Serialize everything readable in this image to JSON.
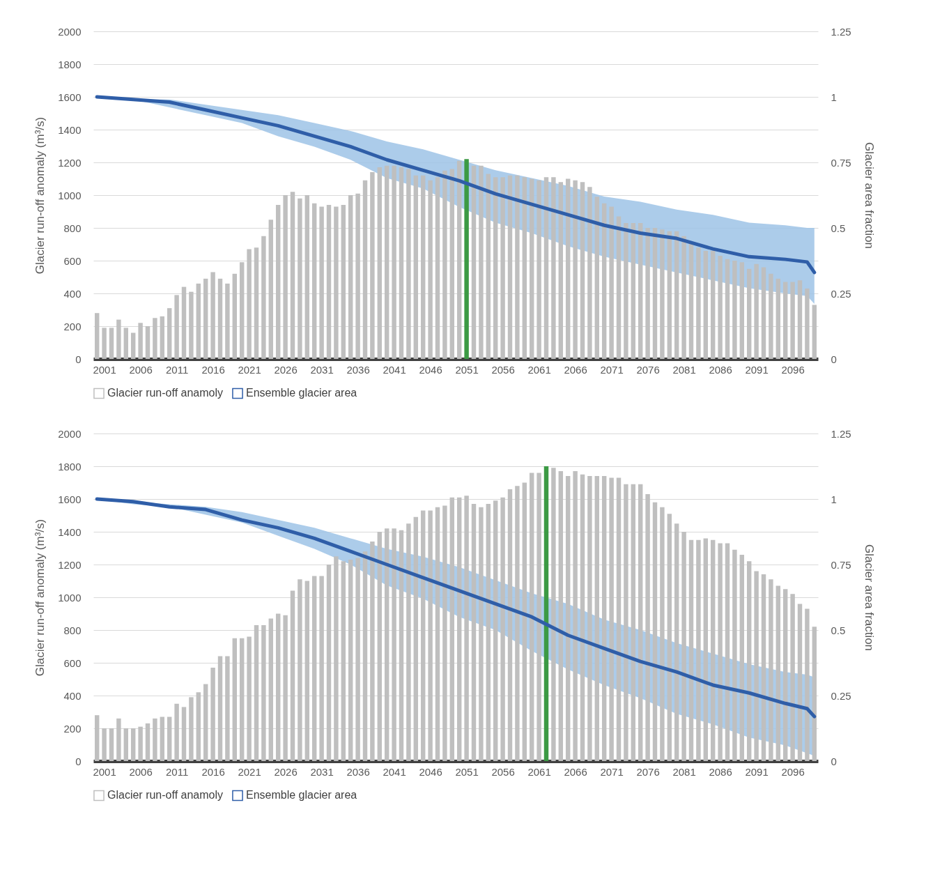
{
  "chart_data": [
    {
      "type": "bar",
      "ylabel": "Glacier run-off anomaly (m³/s)",
      "y2label": "Glacier area fraction",
      "x": [
        2000,
        2001,
        2002,
        2003,
        2004,
        2005,
        2006,
        2007,
        2008,
        2009,
        2010,
        2011,
        2012,
        2013,
        2014,
        2015,
        2016,
        2017,
        2018,
        2019,
        2020,
        2021,
        2022,
        2023,
        2024,
        2025,
        2026,
        2027,
        2028,
        2029,
        2030,
        2031,
        2032,
        2033,
        2034,
        2035,
        2036,
        2037,
        2038,
        2039,
        2040,
        2041,
        2042,
        2043,
        2044,
        2045,
        2046,
        2047,
        2048,
        2049,
        2050,
        2051,
        2052,
        2053,
        2054,
        2055,
        2056,
        2057,
        2058,
        2059,
        2060,
        2061,
        2062,
        2063,
        2064,
        2065,
        2066,
        2067,
        2068,
        2069,
        2070,
        2071,
        2072,
        2073,
        2074,
        2075,
        2076,
        2077,
        2078,
        2079,
        2080,
        2081,
        2082,
        2083,
        2084,
        2085,
        2086,
        2087,
        2088,
        2089,
        2090,
        2091,
        2092,
        2093,
        2094,
        2095,
        2096,
        2097,
        2098,
        2099
      ],
      "xlim": [
        1999.5,
        2099.5
      ],
      "xticks": [
        2001,
        2006,
        2011,
        2016,
        2021,
        2026,
        2031,
        2036,
        2041,
        2046,
        2051,
        2056,
        2061,
        2066,
        2071,
        2076,
        2081,
        2086,
        2091,
        2096
      ],
      "ylim": [
        0,
        2000
      ],
      "yticks": [
        0,
        200,
        400,
        600,
        800,
        1000,
        1200,
        1400,
        1600,
        1800,
        2000
      ],
      "y2lim": [
        0,
        1.25
      ],
      "y2ticks": [
        0,
        0.25,
        0.5,
        0.75,
        1,
        1.25
      ],
      "grid": "y",
      "legend": "bottom",
      "series": [
        {
          "name": "Glacier run-off anamoly",
          "color": "#bfbfbf",
          "values": [
            280,
            190,
            190,
            240,
            190,
            160,
            220,
            200,
            250,
            260,
            310,
            390,
            440,
            410,
            460,
            490,
            530,
            490,
            460,
            520,
            590,
            670,
            680,
            750,
            850,
            940,
            1000,
            1020,
            980,
            1000,
            950,
            930,
            940,
            930,
            940,
            1000,
            1010,
            1090,
            1140,
            1170,
            1180,
            1180,
            1170,
            1160,
            1120,
            1120,
            1090,
            1110,
            1150,
            1160,
            1210,
            1220,
            1180,
            1180,
            1130,
            1110,
            1110,
            1120,
            1120,
            1110,
            1100,
            1090,
            1110,
            1110,
            1080,
            1100,
            1090,
            1080,
            1050,
            990,
            950,
            930,
            870,
            830,
            830,
            830,
            800,
            800,
            790,
            780,
            780,
            750,
            710,
            680,
            660,
            660,
            630,
            610,
            600,
            590,
            550,
            580,
            560,
            520,
            490,
            470,
            470,
            480,
            430,
            330
          ],
          "colors": [
            "#bfbfbf",
            "#bfbfbf",
            "#bfbfbf",
            "#bfbfbf",
            "#bfbfbf",
            "#bfbfbf",
            "#bfbfbf",
            "#bfbfbf",
            "#bfbfbf",
            "#bfbfbf",
            "#bfbfbf",
            "#bfbfbf",
            "#bfbfbf",
            "#bfbfbf",
            "#bfbfbf",
            "#bfbfbf",
            "#bfbfbf",
            "#bfbfbf",
            "#bfbfbf",
            "#bfbfbf",
            "#bfbfbf",
            "#bfbfbf",
            "#bfbfbf",
            "#bfbfbf",
            "#bfbfbf",
            "#bfbfbf",
            "#bfbfbf",
            "#bfbfbf",
            "#bfbfbf",
            "#bfbfbf",
            "#bfbfbf",
            "#bfbfbf",
            "#bfbfbf",
            "#bfbfbf",
            "#bfbfbf",
            "#bfbfbf",
            "#bfbfbf",
            "#bfbfbf",
            "#bfbfbf",
            "#bfbfbf",
            "#bfbfbf",
            "#bfbfbf",
            "#bfbfbf",
            "#bfbfbf",
            "#bfbfbf",
            "#bfbfbf",
            "#bfbfbf",
            "#bfbfbf",
            "#bfbfbf",
            "#bfbfbf",
            "#bfbfbf",
            "#3c9a44",
            "#bfbfbf",
            "#bfbfbf",
            "#bfbfbf",
            "#bfbfbf",
            "#bfbfbf",
            "#bfbfbf",
            "#bfbfbf",
            "#bfbfbf",
            "#bfbfbf",
            "#bfbfbf",
            "#bfbfbf",
            "#bfbfbf",
            "#bfbfbf",
            "#bfbfbf",
            "#bfbfbf",
            "#bfbfbf",
            "#bfbfbf",
            "#bfbfbf",
            "#bfbfbf",
            "#bfbfbf",
            "#bfbfbf",
            "#bfbfbf",
            "#bfbfbf",
            "#bfbfbf",
            "#bfbfbf",
            "#bfbfbf",
            "#bfbfbf",
            "#bfbfbf",
            "#bfbfbf",
            "#bfbfbf",
            "#bfbfbf",
            "#bfbfbf",
            "#bfbfbf",
            "#bfbfbf",
            "#bfbfbf",
            "#bfbfbf",
            "#bfbfbf",
            "#bfbfbf",
            "#bfbfbf",
            "#bfbfbf",
            "#bfbfbf",
            "#bfbfbf",
            "#bfbfbf",
            "#bfbfbf",
            "#bfbfbf",
            "#bfbfbf",
            "#bfbfbf",
            "#bfbfbf"
          ]
        },
        {
          "name": "Ensemble glacier area",
          "type": "line",
          "axis": "y2",
          "color": "#2f5ea8",
          "x": [
            2000,
            2005,
            2010,
            2015,
            2020,
            2025,
            2030,
            2035,
            2040,
            2045,
            2050,
            2055,
            2060,
            2065,
            2070,
            2075,
            2080,
            2085,
            2090,
            2095,
            2098,
            2099
          ],
          "values": [
            1.0,
            0.99,
            0.98,
            0.95,
            0.92,
            0.89,
            0.85,
            0.81,
            0.76,
            0.72,
            0.68,
            0.63,
            0.59,
            0.55,
            0.51,
            0.48,
            0.46,
            0.42,
            0.39,
            0.38,
            0.37,
            0.33
          ],
          "upper": [
            1.0,
            0.99,
            0.99,
            0.97,
            0.95,
            0.93,
            0.9,
            0.87,
            0.83,
            0.8,
            0.76,
            0.72,
            0.69,
            0.66,
            0.62,
            0.6,
            0.57,
            0.55,
            0.52,
            0.51,
            0.5,
            0.5
          ],
          "lower": [
            1.0,
            0.99,
            0.96,
            0.93,
            0.9,
            0.85,
            0.81,
            0.76,
            0.69,
            0.65,
            0.58,
            0.52,
            0.48,
            0.43,
            0.39,
            0.36,
            0.33,
            0.3,
            0.27,
            0.25,
            0.24,
            0.21
          ]
        }
      ]
    },
    {
      "type": "bar",
      "ylabel": "Glacier run-off anomaly (m³/s)",
      "y2label": "Glacier area fraction",
      "x": [
        2000,
        2001,
        2002,
        2003,
        2004,
        2005,
        2006,
        2007,
        2008,
        2009,
        2010,
        2011,
        2012,
        2013,
        2014,
        2015,
        2016,
        2017,
        2018,
        2019,
        2020,
        2021,
        2022,
        2023,
        2024,
        2025,
        2026,
        2027,
        2028,
        2029,
        2030,
        2031,
        2032,
        2033,
        2034,
        2035,
        2036,
        2037,
        2038,
        2039,
        2040,
        2041,
        2042,
        2043,
        2044,
        2045,
        2046,
        2047,
        2048,
        2049,
        2050,
        2051,
        2052,
        2053,
        2054,
        2055,
        2056,
        2057,
        2058,
        2059,
        2060,
        2061,
        2062,
        2063,
        2064,
        2065,
        2066,
        2067,
        2068,
        2069,
        2070,
        2071,
        2072,
        2073,
        2074,
        2075,
        2076,
        2077,
        2078,
        2079,
        2080,
        2081,
        2082,
        2083,
        2084,
        2085,
        2086,
        2087,
        2088,
        2089,
        2090,
        2091,
        2092,
        2093,
        2094,
        2095,
        2096,
        2097,
        2098,
        2099
      ],
      "xlim": [
        1999.5,
        2099.5
      ],
      "xticks": [
        2001,
        2006,
        2011,
        2016,
        2021,
        2026,
        2031,
        2036,
        2041,
        2046,
        2051,
        2056,
        2061,
        2066,
        2071,
        2076,
        2081,
        2086,
        2091,
        2096
      ],
      "ylim": [
        0,
        2000
      ],
      "yticks": [
        0,
        200,
        400,
        600,
        800,
        1000,
        1200,
        1400,
        1600,
        1800,
        2000
      ],
      "y2lim": [
        0,
        1.25
      ],
      "y2ticks": [
        0,
        0.25,
        0.5,
        0.75,
        1,
        1.25
      ],
      "grid": "y",
      "legend": "bottom",
      "series": [
        {
          "name": "Glacier run-off anamoly",
          "color": "#bfbfbf",
          "values": [
            280,
            200,
            200,
            260,
            200,
            200,
            210,
            230,
            260,
            270,
            270,
            350,
            330,
            390,
            420,
            470,
            570,
            640,
            640,
            750,
            750,
            760,
            830,
            830,
            870,
            900,
            890,
            1040,
            1110,
            1100,
            1130,
            1130,
            1200,
            1250,
            1220,
            1230,
            1240,
            1280,
            1340,
            1400,
            1420,
            1420,
            1410,
            1450,
            1490,
            1530,
            1530,
            1550,
            1560,
            1610,
            1610,
            1620,
            1570,
            1550,
            1570,
            1590,
            1610,
            1660,
            1680,
            1700,
            1760,
            1760,
            1800,
            1790,
            1770,
            1740,
            1770,
            1750,
            1740,
            1740,
            1740,
            1730,
            1730,
            1690,
            1690,
            1690,
            1630,
            1580,
            1550,
            1510,
            1450,
            1400,
            1350,
            1350,
            1360,
            1350,
            1330,
            1330,
            1290,
            1260,
            1220,
            1160,
            1140,
            1110,
            1070,
            1050,
            1020,
            960,
            930,
            820
          ],
          "colors": [
            "#bfbfbf",
            "#bfbfbf",
            "#bfbfbf",
            "#bfbfbf",
            "#bfbfbf",
            "#bfbfbf",
            "#bfbfbf",
            "#bfbfbf",
            "#bfbfbf",
            "#bfbfbf",
            "#bfbfbf",
            "#bfbfbf",
            "#bfbfbf",
            "#bfbfbf",
            "#bfbfbf",
            "#bfbfbf",
            "#bfbfbf",
            "#bfbfbf",
            "#bfbfbf",
            "#bfbfbf",
            "#bfbfbf",
            "#bfbfbf",
            "#bfbfbf",
            "#bfbfbf",
            "#bfbfbf",
            "#bfbfbf",
            "#bfbfbf",
            "#bfbfbf",
            "#bfbfbf",
            "#bfbfbf",
            "#bfbfbf",
            "#bfbfbf",
            "#bfbfbf",
            "#bfbfbf",
            "#bfbfbf",
            "#bfbfbf",
            "#bfbfbf",
            "#bfbfbf",
            "#bfbfbf",
            "#bfbfbf",
            "#bfbfbf",
            "#bfbfbf",
            "#bfbfbf",
            "#bfbfbf",
            "#bfbfbf",
            "#bfbfbf",
            "#bfbfbf",
            "#bfbfbf",
            "#bfbfbf",
            "#bfbfbf",
            "#bfbfbf",
            "#bfbfbf",
            "#bfbfbf",
            "#bfbfbf",
            "#bfbfbf",
            "#bfbfbf",
            "#bfbfbf",
            "#bfbfbf",
            "#bfbfbf",
            "#bfbfbf",
            "#bfbfbf",
            "#bfbfbf",
            "#3c9a44",
            "#bfbfbf",
            "#bfbfbf",
            "#bfbfbf",
            "#bfbfbf",
            "#bfbfbf",
            "#bfbfbf",
            "#bfbfbf",
            "#bfbfbf",
            "#bfbfbf",
            "#bfbfbf",
            "#bfbfbf",
            "#bfbfbf",
            "#bfbfbf",
            "#bfbfbf",
            "#bfbfbf",
            "#bfbfbf",
            "#bfbfbf",
            "#bfbfbf",
            "#bfbfbf",
            "#bfbfbf",
            "#bfbfbf",
            "#bfbfbf",
            "#bfbfbf",
            "#bfbfbf",
            "#bfbfbf",
            "#bfbfbf",
            "#bfbfbf",
            "#bfbfbf",
            "#bfbfbf",
            "#bfbfbf",
            "#bfbfbf",
            "#bfbfbf",
            "#bfbfbf",
            "#bfbfbf",
            "#bfbfbf",
            "#bfbfbf",
            "#bfbfbf"
          ]
        },
        {
          "name": "Ensemble glacier area",
          "type": "line",
          "axis": "y2",
          "color": "#2f5ea8",
          "x": [
            2000,
            2005,
            2010,
            2015,
            2020,
            2025,
            2030,
            2035,
            2040,
            2045,
            2050,
            2055,
            2060,
            2065,
            2070,
            2075,
            2080,
            2085,
            2090,
            2095,
            2098,
            2099
          ],
          "values": [
            1.0,
            0.99,
            0.97,
            0.96,
            0.92,
            0.89,
            0.85,
            0.8,
            0.75,
            0.7,
            0.65,
            0.6,
            0.55,
            0.48,
            0.43,
            0.38,
            0.34,
            0.29,
            0.26,
            0.22,
            0.2,
            0.17
          ],
          "upper": [
            1.0,
            0.99,
            0.98,
            0.97,
            0.95,
            0.92,
            0.89,
            0.85,
            0.81,
            0.78,
            0.74,
            0.69,
            0.64,
            0.6,
            0.54,
            0.5,
            0.45,
            0.41,
            0.37,
            0.34,
            0.33,
            0.32
          ],
          "lower": [
            1.0,
            0.98,
            0.97,
            0.94,
            0.91,
            0.86,
            0.81,
            0.75,
            0.67,
            0.62,
            0.55,
            0.5,
            0.42,
            0.35,
            0.29,
            0.24,
            0.18,
            0.14,
            0.09,
            0.06,
            0.03,
            0.02
          ]
        }
      ]
    }
  ]
}
